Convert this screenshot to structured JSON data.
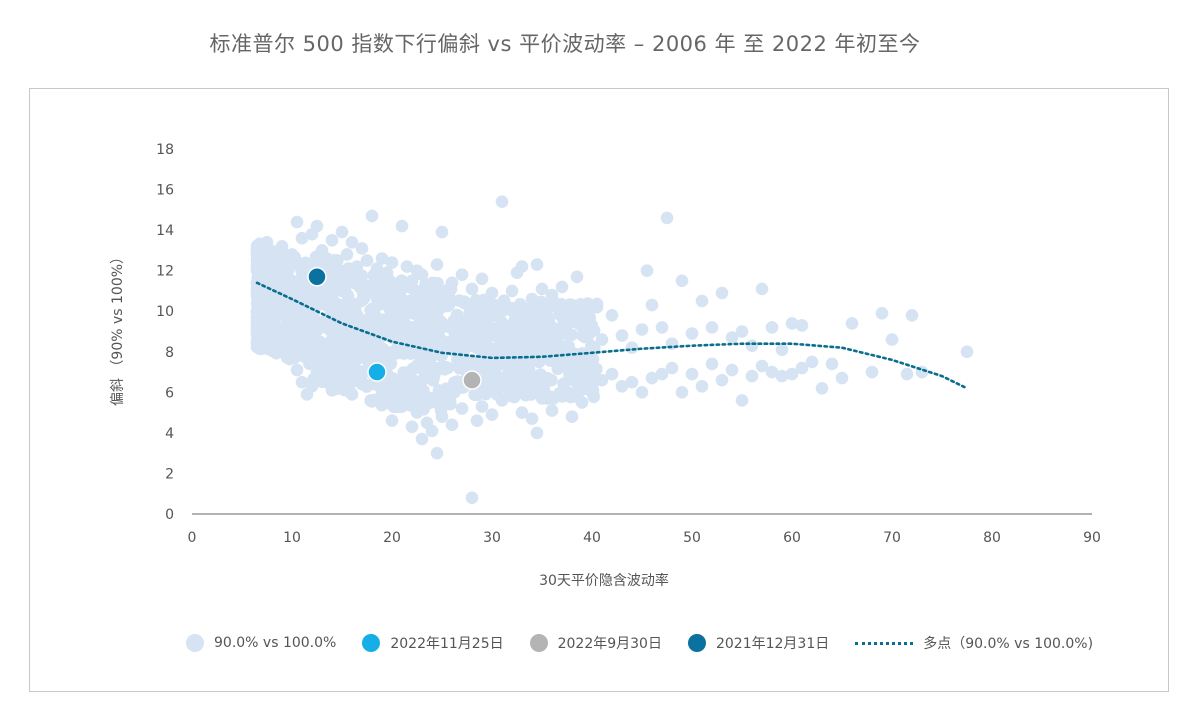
{
  "title": "标准普尔 500 指数下行偏斜 vs 平价波动率 – 2006 年 至 2022 年初至今",
  "colors": {
    "cloud": "#d5e3f2",
    "nov2022": "#16aee6",
    "sep2022": "#b4b4b4",
    "dec2021": "#0b72a0",
    "trend": "#0a6e8f",
    "axis": "#999999"
  },
  "chart_data": {
    "type": "scatter",
    "xlabel": "30天平价隐含波动率",
    "ylabel": "偏斜 （90% vs 100%）",
    "xlim": [
      0,
      90
    ],
    "ylim": [
      0,
      18
    ],
    "xticks": [
      0,
      10,
      20,
      30,
      40,
      50,
      60,
      70,
      80,
      90
    ],
    "yticks": [
      0,
      2,
      4,
      6,
      8,
      10,
      12,
      14,
      16,
      18
    ],
    "legend_position": "bottom",
    "series": [
      {
        "name": "90.0% vs 100.0%",
        "kind": "cloud",
        "points": [
          [
            6.5,
            13.1
          ],
          [
            7,
            12.8
          ],
          [
            7.5,
            13.4
          ],
          [
            8,
            12.5
          ],
          [
            8.5,
            12.9
          ],
          [
            9,
            13.2
          ],
          [
            9.5,
            12.2
          ],
          [
            10,
            12.8
          ],
          [
            10.5,
            14.4
          ],
          [
            11,
            13.6
          ],
          [
            11.5,
            12.1
          ],
          [
            12,
            13.8
          ],
          [
            12.5,
            14.2
          ],
          [
            13,
            13.0
          ],
          [
            13.5,
            12.6
          ],
          [
            14,
            13.5
          ],
          [
            14.5,
            12.0
          ],
          [
            15,
            13.9
          ],
          [
            15.5,
            12.8
          ],
          [
            16,
            13.4
          ],
          [
            16.5,
            12.2
          ],
          [
            17,
            13.1
          ],
          [
            17.5,
            12.5
          ],
          [
            18,
            14.7
          ],
          [
            18.5,
            12.1
          ],
          [
            19,
            12.6
          ],
          [
            19.5,
            11.9
          ],
          [
            20,
            12.4
          ],
          [
            21,
            14.2
          ],
          [
            21.5,
            12.2
          ],
          [
            22,
            11.5
          ],
          [
            22.5,
            12.0
          ],
          [
            23,
            11.8
          ],
          [
            24,
            11.2
          ],
          [
            24.5,
            12.3
          ],
          [
            25,
            13.9
          ],
          [
            26,
            11.4
          ],
          [
            27,
            11.8
          ],
          [
            28,
            11.1
          ],
          [
            29,
            11.6
          ],
          [
            30,
            10.9
          ],
          [
            31,
            15.4
          ],
          [
            32,
            11.0
          ],
          [
            32.5,
            11.9
          ],
          [
            33,
            12.2
          ],
          [
            34,
            10.6
          ],
          [
            34.5,
            12.3
          ],
          [
            35,
            11.1
          ],
          [
            35.5,
            9.8
          ],
          [
            36,
            10.8
          ],
          [
            37,
            11.2
          ],
          [
            38,
            10.3
          ],
          [
            38.5,
            11.7
          ],
          [
            39,
            9.6
          ],
          [
            40,
            9.1
          ],
          [
            40.5,
            10.2
          ],
          [
            41,
            8.6
          ],
          [
            42,
            9.8
          ],
          [
            43,
            8.8
          ],
          [
            44,
            8.2
          ],
          [
            45,
            9.1
          ],
          [
            45.5,
            12.0
          ],
          [
            46,
            10.3
          ],
          [
            47,
            9.2
          ],
          [
            47.5,
            14.6
          ],
          [
            48,
            8.4
          ],
          [
            49,
            11.5
          ],
          [
            50,
            8.9
          ],
          [
            51,
            10.5
          ],
          [
            52,
            9.2
          ],
          [
            53,
            10.9
          ],
          [
            54,
            8.7
          ],
          [
            55,
            9.0
          ],
          [
            56,
            8.3
          ],
          [
            57,
            11.1
          ],
          [
            58,
            9.2
          ],
          [
            59,
            8.1
          ],
          [
            60,
            9.4
          ],
          [
            61,
            9.3
          ],
          [
            62,
            7.5
          ],
          [
            63,
            6.2
          ],
          [
            65,
            6.7
          ],
          [
            66,
            9.4
          ],
          [
            68,
            7.0
          ],
          [
            69,
            9.9
          ],
          [
            70,
            8.6
          ],
          [
            71.5,
            6.9
          ],
          [
            72,
            9.8
          ],
          [
            77.5,
            8.0
          ],
          [
            7,
            11.5
          ],
          [
            8,
            10.7
          ],
          [
            9,
            9.8
          ],
          [
            9.5,
            8.9
          ],
          [
            10,
            7.9
          ],
          [
            10.5,
            7.1
          ],
          [
            11,
            6.5
          ],
          [
            11.5,
            5.9
          ],
          [
            12,
            6.3
          ],
          [
            13,
            7.0
          ],
          [
            14,
            6.1
          ],
          [
            15,
            6.8
          ],
          [
            16,
            5.9
          ],
          [
            17,
            6.4
          ],
          [
            18,
            5.6
          ],
          [
            19,
            6.1
          ],
          [
            20,
            4.6
          ],
          [
            21,
            5.3
          ],
          [
            22,
            4.3
          ],
          [
            22.5,
            5.0
          ],
          [
            23,
            3.7
          ],
          [
            23.5,
            4.5
          ],
          [
            24,
            4.1
          ],
          [
            24.5,
            3.0
          ],
          [
            25,
            4.8
          ],
          [
            26,
            4.4
          ],
          [
            27,
            5.2
          ],
          [
            28,
            0.8
          ],
          [
            28.5,
            4.6
          ],
          [
            29,
            5.3
          ],
          [
            30,
            4.9
          ],
          [
            31,
            5.6
          ],
          [
            32,
            6.1
          ],
          [
            33,
            5.0
          ],
          [
            34,
            4.7
          ],
          [
            34.5,
            4.0
          ],
          [
            35,
            5.7
          ],
          [
            36,
            5.1
          ],
          [
            37,
            5.8
          ],
          [
            38,
            4.8
          ],
          [
            39,
            5.5
          ],
          [
            40,
            6.0
          ],
          [
            41,
            6.6
          ],
          [
            42,
            6.9
          ],
          [
            43,
            6.3
          ],
          [
            44,
            6.5
          ],
          [
            45,
            6.0
          ],
          [
            46,
            6.7
          ],
          [
            47,
            6.9
          ],
          [
            48,
            7.2
          ],
          [
            49,
            6.0
          ],
          [
            50,
            6.9
          ],
          [
            51,
            6.3
          ],
          [
            52,
            7.4
          ],
          [
            53,
            6.6
          ],
          [
            54,
            7.1
          ],
          [
            55,
            5.6
          ],
          [
            56,
            6.8
          ],
          [
            57,
            7.3
          ],
          [
            58,
            7.0
          ],
          [
            59,
            6.8
          ],
          [
            60,
            6.9
          ],
          [
            61,
            7.2
          ],
          [
            64,
            7.4
          ],
          [
            73,
            7.0
          ]
        ]
      },
      {
        "name": "2022年11月25日",
        "x": 18.5,
        "y": 7.0
      },
      {
        "name": "2022年9月30日",
        "x": 28.0,
        "y": 6.6
      },
      {
        "name": "2021年12月31日",
        "x": 12.5,
        "y": 11.7
      },
      {
        "name": "多点 (90.0% vs 100.0%)",
        "kind": "trend",
        "points": [
          [
            6.5,
            11.4
          ],
          [
            10,
            10.6
          ],
          [
            15,
            9.4
          ],
          [
            20,
            8.5
          ],
          [
            25,
            7.95
          ],
          [
            30,
            7.7
          ],
          [
            35,
            7.75
          ],
          [
            40,
            7.95
          ],
          [
            45,
            8.15
          ],
          [
            50,
            8.3
          ],
          [
            55,
            8.4
          ],
          [
            60,
            8.4
          ],
          [
            65,
            8.2
          ],
          [
            70,
            7.6
          ],
          [
            75,
            6.8
          ],
          [
            77.5,
            6.2
          ]
        ]
      }
    ]
  },
  "legend": {
    "cloud_label": "90.0% vs 100.0%",
    "nov_label": "2022年11月25日",
    "sep_label": "2022年9月30日",
    "dec_label": "2021年12月31日",
    "trend_label": "多点（90.0% vs 100.0%)"
  }
}
